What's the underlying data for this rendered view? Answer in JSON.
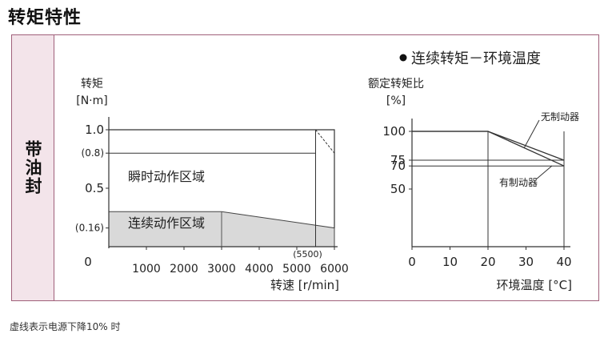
{
  "title": "转矩特性",
  "side_label": "带油封",
  "footnote": "虚线表示电源下降10% 时",
  "chart_data": [
    {
      "type": "area",
      "ylabel_line1": "转矩",
      "ylabel_line2": "[N·m]",
      "xlabel": "转速 [r/min]",
      "x_origin_label": "0",
      "xlim": [
        0,
        6000
      ],
      "ylim": [
        0,
        1.0
      ],
      "x_ticks": [
        {
          "value": 1000,
          "label": "1000"
        },
        {
          "value": 2000,
          "label": "2000"
        },
        {
          "value": 3000,
          "label": "3000"
        },
        {
          "value": 4000,
          "label": "4000"
        },
        {
          "value": 5000,
          "label": "5000"
        },
        {
          "value": 6000,
          "label": "6000"
        }
      ],
      "x_marker": {
        "value": 5500,
        "label": "(5500)"
      },
      "y_ticks": [
        {
          "value": 1.0,
          "label": "1.0"
        },
        {
          "value": 0.8,
          "label": "(0.8)"
        },
        {
          "value": 0.5,
          "label": "0.5"
        },
        {
          "value": 0.16,
          "label": "(0.16)"
        }
      ],
      "regions": {
        "intermittent": {
          "label": "瞬时动作区域",
          "points": [
            [
              0,
              1.0
            ],
            [
              6000,
              1.0
            ],
            [
              6000,
              0.16
            ]
          ]
        },
        "continuous": {
          "label": "连续动作区域",
          "points": [
            [
              0,
              0.3
            ],
            [
              3000,
              0.3
            ],
            [
              6000,
              0.16
            ],
            [
              6000,
              0
            ],
            [
              0,
              0
            ]
          ],
          "fill": "#d9d9d9"
        }
      },
      "voltage_drop": {
        "line_points": [
          [
            0,
            0.8
          ],
          [
            5500,
            0.8
          ]
        ],
        "dashed_points": [
          [
            5500,
            1.0
          ],
          [
            6000,
            0.8
          ]
        ]
      }
    },
    {
      "type": "line",
      "title": "连续转矩－环境温度",
      "ylabel_line1": "额定转矩比",
      "ylabel_line2": "[%]",
      "xlabel": "环境温度 [°C]",
      "xlim": [
        0,
        40
      ],
      "ylim": [
        0,
        100
      ],
      "x_ticks": [
        {
          "value": 0,
          "label": "0"
        },
        {
          "value": 10,
          "label": "10"
        },
        {
          "value": 20,
          "label": "20"
        },
        {
          "value": 30,
          "label": "30"
        },
        {
          "value": 40,
          "label": "40"
        }
      ],
      "y_ticks": [
        {
          "value": 100,
          "label": "100"
        },
        {
          "value": 75,
          "label": "75"
        },
        {
          "value": 70,
          "label": "70"
        },
        {
          "value": 50,
          "label": "50"
        }
      ],
      "series": [
        {
          "name": "无制动器",
          "x": [
            0,
            20,
            40
          ],
          "y": [
            100,
            100,
            75
          ]
        },
        {
          "name": "有制动器",
          "x": [
            0,
            20,
            40
          ],
          "y": [
            100,
            100,
            70
          ]
        }
      ]
    }
  ]
}
